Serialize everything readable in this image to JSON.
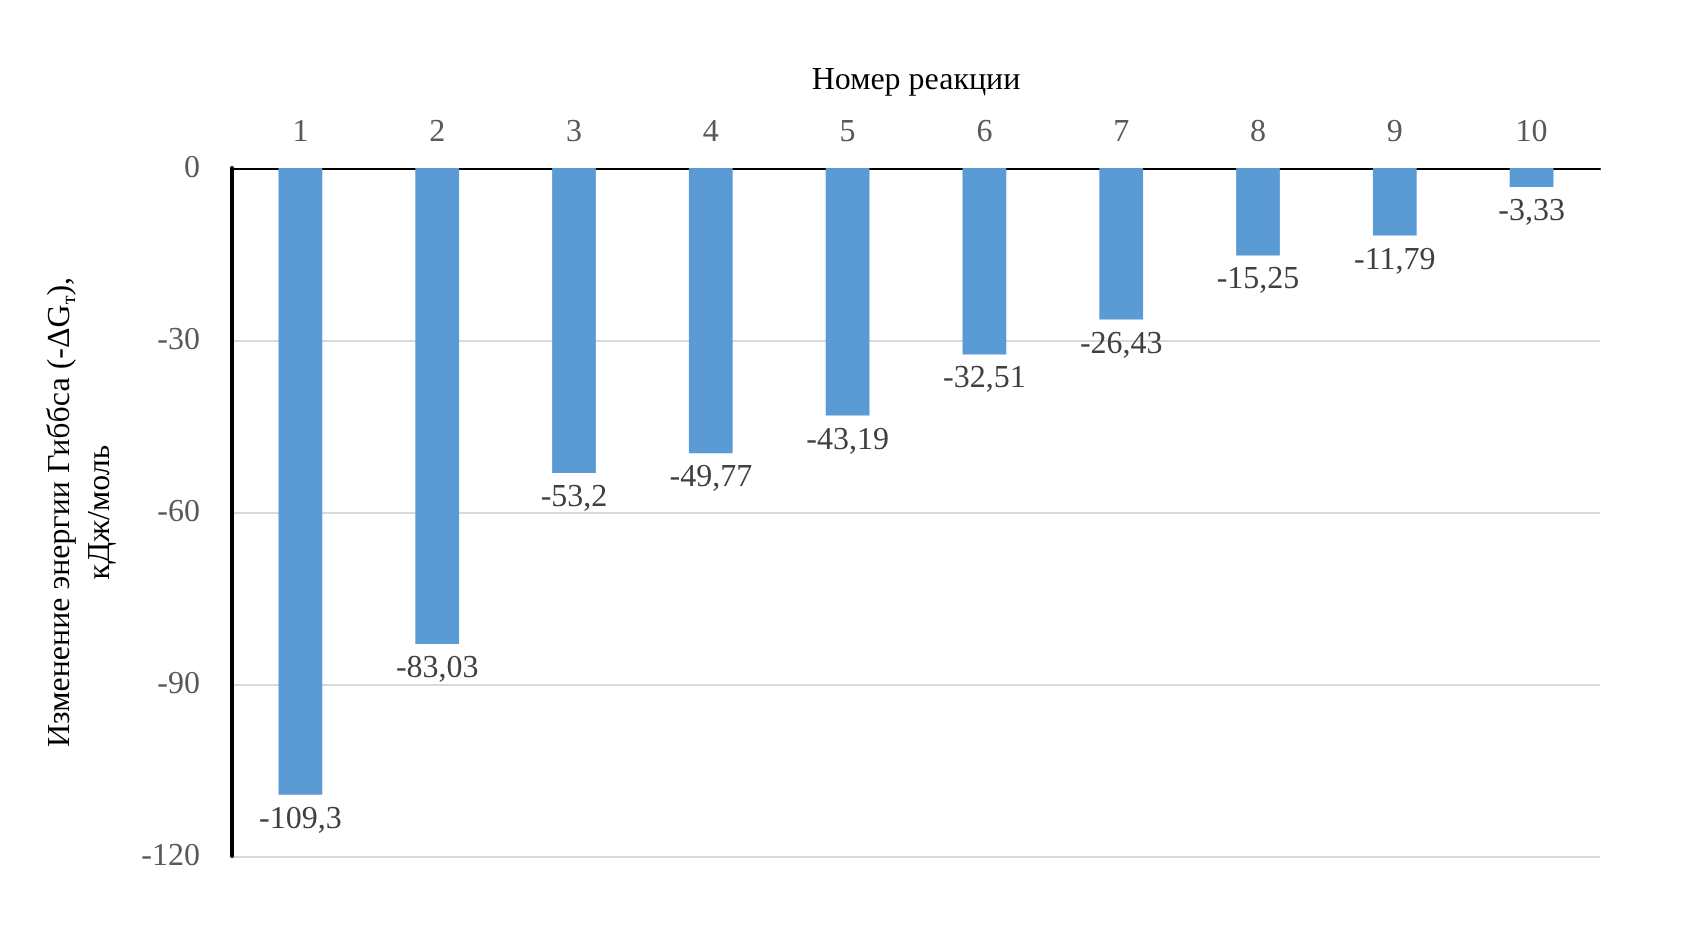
{
  "chart_data": {
    "type": "bar",
    "xlabel": "Номер реакции",
    "ylabel": "Изменение энергии Гиббса (-ΔG$_{т}$),\nкДж/моль",
    "categories": [
      "1",
      "2",
      "3",
      "4",
      "5",
      "6",
      "7",
      "8",
      "9",
      "10"
    ],
    "values": [
      -109.3,
      -83.03,
      -53.2,
      -49.77,
      -43.19,
      -32.51,
      -26.43,
      -15.25,
      -11.79,
      -3.33
    ],
    "value_labels": [
      "-109,3",
      "-83,03",
      "-53,2",
      "-49,77",
      "-43,19",
      "-32,51",
      "-26,43",
      "-15,25",
      "-11,79",
      "-3,33"
    ],
    "color": "#5b9bd5",
    "ylim": [
      -120,
      0
    ],
    "yticks": [
      -120,
      -90,
      -60,
      -30,
      0
    ],
    "grid": "y"
  }
}
